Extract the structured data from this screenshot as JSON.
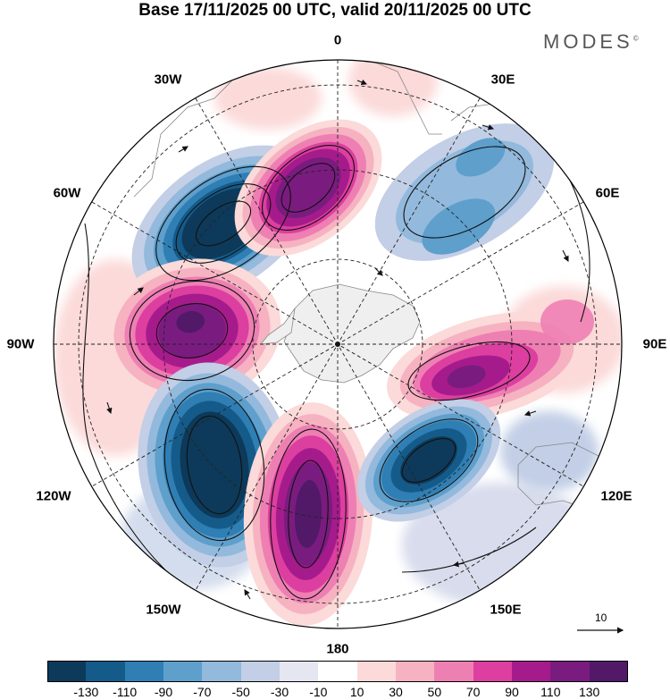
{
  "title": "Base 17/11/2025 00 UTC, valid 20/11/2025 00 UTC",
  "brand": "MODES",
  "brand_mark": "©",
  "longitude_labels": {
    "lon_0": "0",
    "lon_30e": "30E",
    "lon_60e": "60E",
    "lon_90e": "90E",
    "lon_120e": "120E",
    "lon_150e": "150E",
    "lon_180": "180",
    "lon_150w": "150W",
    "lon_120w": "120W",
    "lon_90w": "90W",
    "lon_60w": "60W",
    "lon_30w": "30W"
  },
  "vector_scale": {
    "label": "10"
  },
  "colorbar": {
    "ticks": [
      "-130",
      "-110",
      "-90",
      "-70",
      "-50",
      "-30",
      "-10",
      "10",
      "30",
      "50",
      "70",
      "90",
      "110",
      "130"
    ],
    "colors": [
      "#0d3a5a",
      "#155b8a",
      "#2f7fb5",
      "#5e9fcc",
      "#93b9dc",
      "#c2cfe6",
      "#e6e6f2",
      "#ffffff",
      "#fbdad9",
      "#f6b2c1",
      "#ee7fb3",
      "#dc3f9f",
      "#a61b8c",
      "#7a1c7f",
      "#521968"
    ]
  },
  "colors": {
    "land": "#efefef",
    "coast": "#888888"
  }
}
